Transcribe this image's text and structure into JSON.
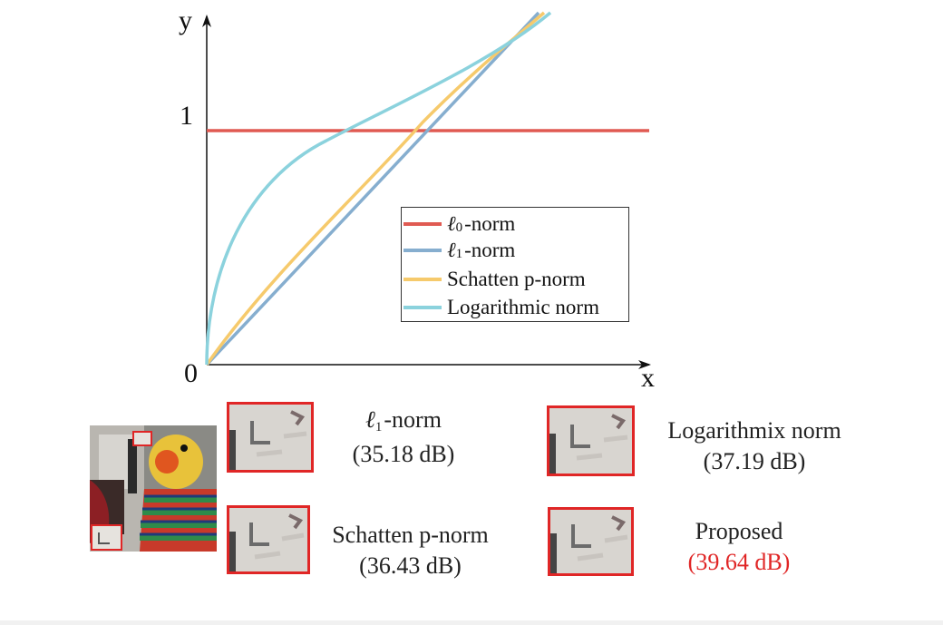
{
  "axes": {
    "y_label": "y",
    "x_label": "x",
    "origin_label": "0",
    "y_tick_label": "1"
  },
  "legend": {
    "items": [
      {
        "prefix": "ℓ",
        "subscript": "0",
        "suffix": "-norm",
        "color": "#e05a52"
      },
      {
        "prefix": "ℓ",
        "subscript": "1",
        "suffix": "-norm",
        "color": "#86aecf"
      },
      {
        "prefix": "",
        "subscript": "",
        "suffix": "Schatten p-norm",
        "color": "#f6ca6c"
      },
      {
        "prefix": "",
        "subscript": "",
        "suffix": "Logarithmic norm",
        "color": "#8bd2dd"
      }
    ]
  },
  "comparisons": [
    {
      "name_prefix": "ℓ",
      "name_subscript": "1",
      "name_suffix": "-norm",
      "psnr": "(35.18 dB)",
      "psnr_color": "#222222"
    },
    {
      "name_prefix": "",
      "name_subscript": "",
      "name_suffix": "Logarithmix norm",
      "psnr": "(37.19 dB)",
      "psnr_color": "#222222"
    },
    {
      "name_prefix": "",
      "name_subscript": "",
      "name_suffix": "Schatten p-norm",
      "psnr": "(36.43 dB)",
      "psnr_color": "#222222"
    },
    {
      "name_prefix": "",
      "name_subscript": "",
      "name_suffix": "Proposed",
      "psnr": "(39.64 dB)",
      "psnr_color": "#e02626"
    }
  ],
  "colors": {
    "highlight_box": "#e02626",
    "axis": "#111111"
  }
}
